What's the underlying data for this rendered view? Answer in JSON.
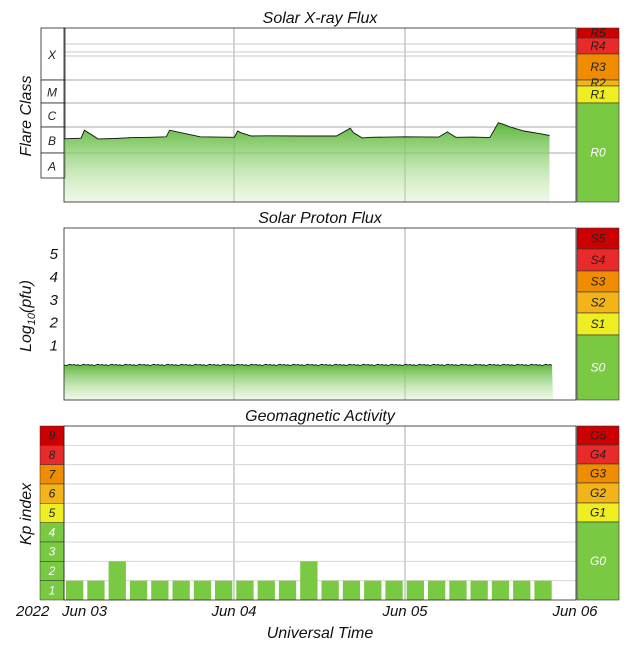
{
  "chart_data": [
    {
      "title": "Solar X-ray Flux",
      "ylabel": "Flare Class",
      "type": "area",
      "y_scale": "log",
      "y_unit_note": "W/m^2",
      "class_labels": [
        "X",
        "M",
        "C",
        "B",
        "A"
      ],
      "class_bounds": [
        1e-08,
        1e-07,
        1e-06,
        1e-05,
        0.0001,
        0.001
      ],
      "scale_boxes": [
        {
          "label": "R5",
          "color": "#cc0000"
        },
        {
          "label": "R4",
          "color": "#e82a2a"
        },
        {
          "label": "R3",
          "color": "#f08c00"
        },
        {
          "label": "R2",
          "color": "#f2b418"
        },
        {
          "label": "R1",
          "color": "#eeee22"
        },
        {
          "label": "R0",
          "color": "#7ac943"
        }
      ],
      "series_x_days": [
        0.0,
        0.1,
        0.12,
        0.2,
        0.3,
        0.4,
        0.5,
        0.6,
        0.62,
        0.8,
        1.0,
        1.02,
        1.04,
        1.1,
        1.2,
        1.4,
        1.6,
        1.68,
        1.7,
        1.75,
        1.8,
        2.0,
        2.2,
        2.25,
        2.3,
        2.4,
        2.5,
        2.55,
        2.58,
        2.62,
        2.7,
        2.8,
        2.85
      ],
      "series_flux": [
        3.5e-07,
        3.7e-07,
        7.5e-07,
        3.5e-07,
        3.6e-07,
        3.9e-07,
        4e-07,
        4.2e-07,
        7.5e-07,
        4.2e-07,
        4e-07,
        7e-07,
        6e-07,
        4.5e-07,
        4.6e-07,
        4.5e-07,
        4.5e-07,
        9e-07,
        6e-07,
        3.8e-07,
        4e-07,
        4.2e-07,
        4.1e-07,
        6.5e-07,
        4e-07,
        4.1e-07,
        3.9e-07,
        1.5e-06,
        1.3e-06,
        1e-06,
        7e-07,
        5.5e-07,
        4.7e-07
      ]
    },
    {
      "title": "Solar Proton Flux",
      "ylabel": "Log10(pfu)",
      "ylabel_main": "Log",
      "ylabel_sub": "10",
      "ylabel_tail": "(pfu)",
      "type": "area",
      "yticks": [
        "1",
        "2",
        "3",
        "4",
        "5"
      ],
      "ylim": [
        -1.5,
        6
      ],
      "baseline_log_pfu": -0.6,
      "scale_boxes": [
        {
          "label": "S5",
          "color": "#cc0000"
        },
        {
          "label": "S4",
          "color": "#e82a2a"
        },
        {
          "label": "S3",
          "color": "#f08c00"
        },
        {
          "label": "S2",
          "color": "#f2b418"
        },
        {
          "label": "S1",
          "color": "#eeee22"
        },
        {
          "label": "S0",
          "color": "#7ac943"
        }
      ]
    },
    {
      "title": "Geomagnetic Activity",
      "ylabel": "Kp index",
      "type": "bar",
      "ylim": [
        0,
        9
      ],
      "kp_levels": [
        {
          "label": "9",
          "color": "#cc0000"
        },
        {
          "label": "8",
          "color": "#e82a2a"
        },
        {
          "label": "7",
          "color": "#f08c00"
        },
        {
          "label": "6",
          "color": "#f2b418"
        },
        {
          "label": "5",
          "color": "#eeee22"
        },
        {
          "label": "4",
          "color": "#7ac943"
        },
        {
          "label": "3",
          "color": "#7ac943"
        },
        {
          "label": "2",
          "color": "#7ac943"
        },
        {
          "label": "1",
          "color": "#7ac943"
        }
      ],
      "kp_values": [
        1,
        1,
        2,
        1,
        1,
        1,
        1,
        1,
        1,
        1,
        1,
        2,
        1,
        1,
        1,
        1,
        1,
        1,
        1,
        1,
        1,
        1,
        1
      ],
      "scale_boxes": [
        {
          "label": "G5",
          "color": "#cc0000"
        },
        {
          "label": "G4",
          "color": "#e82a2a"
        },
        {
          "label": "G3",
          "color": "#f08c00"
        },
        {
          "label": "G2",
          "color": "#f2b418"
        },
        {
          "label": "G1",
          "color": "#eeee22"
        },
        {
          "label": "G0",
          "color": "#7ac943"
        }
      ]
    }
  ],
  "x_axis": {
    "year_label": "2022",
    "ticks": [
      "Jun 03",
      "Jun 04",
      "Jun 05",
      "Jun 06"
    ],
    "xlabel": "Universal Time",
    "days_span": 3
  },
  "colors": {
    "green": "#7ac943",
    "grid": "#aaaaaa",
    "frame": "#222222"
  }
}
